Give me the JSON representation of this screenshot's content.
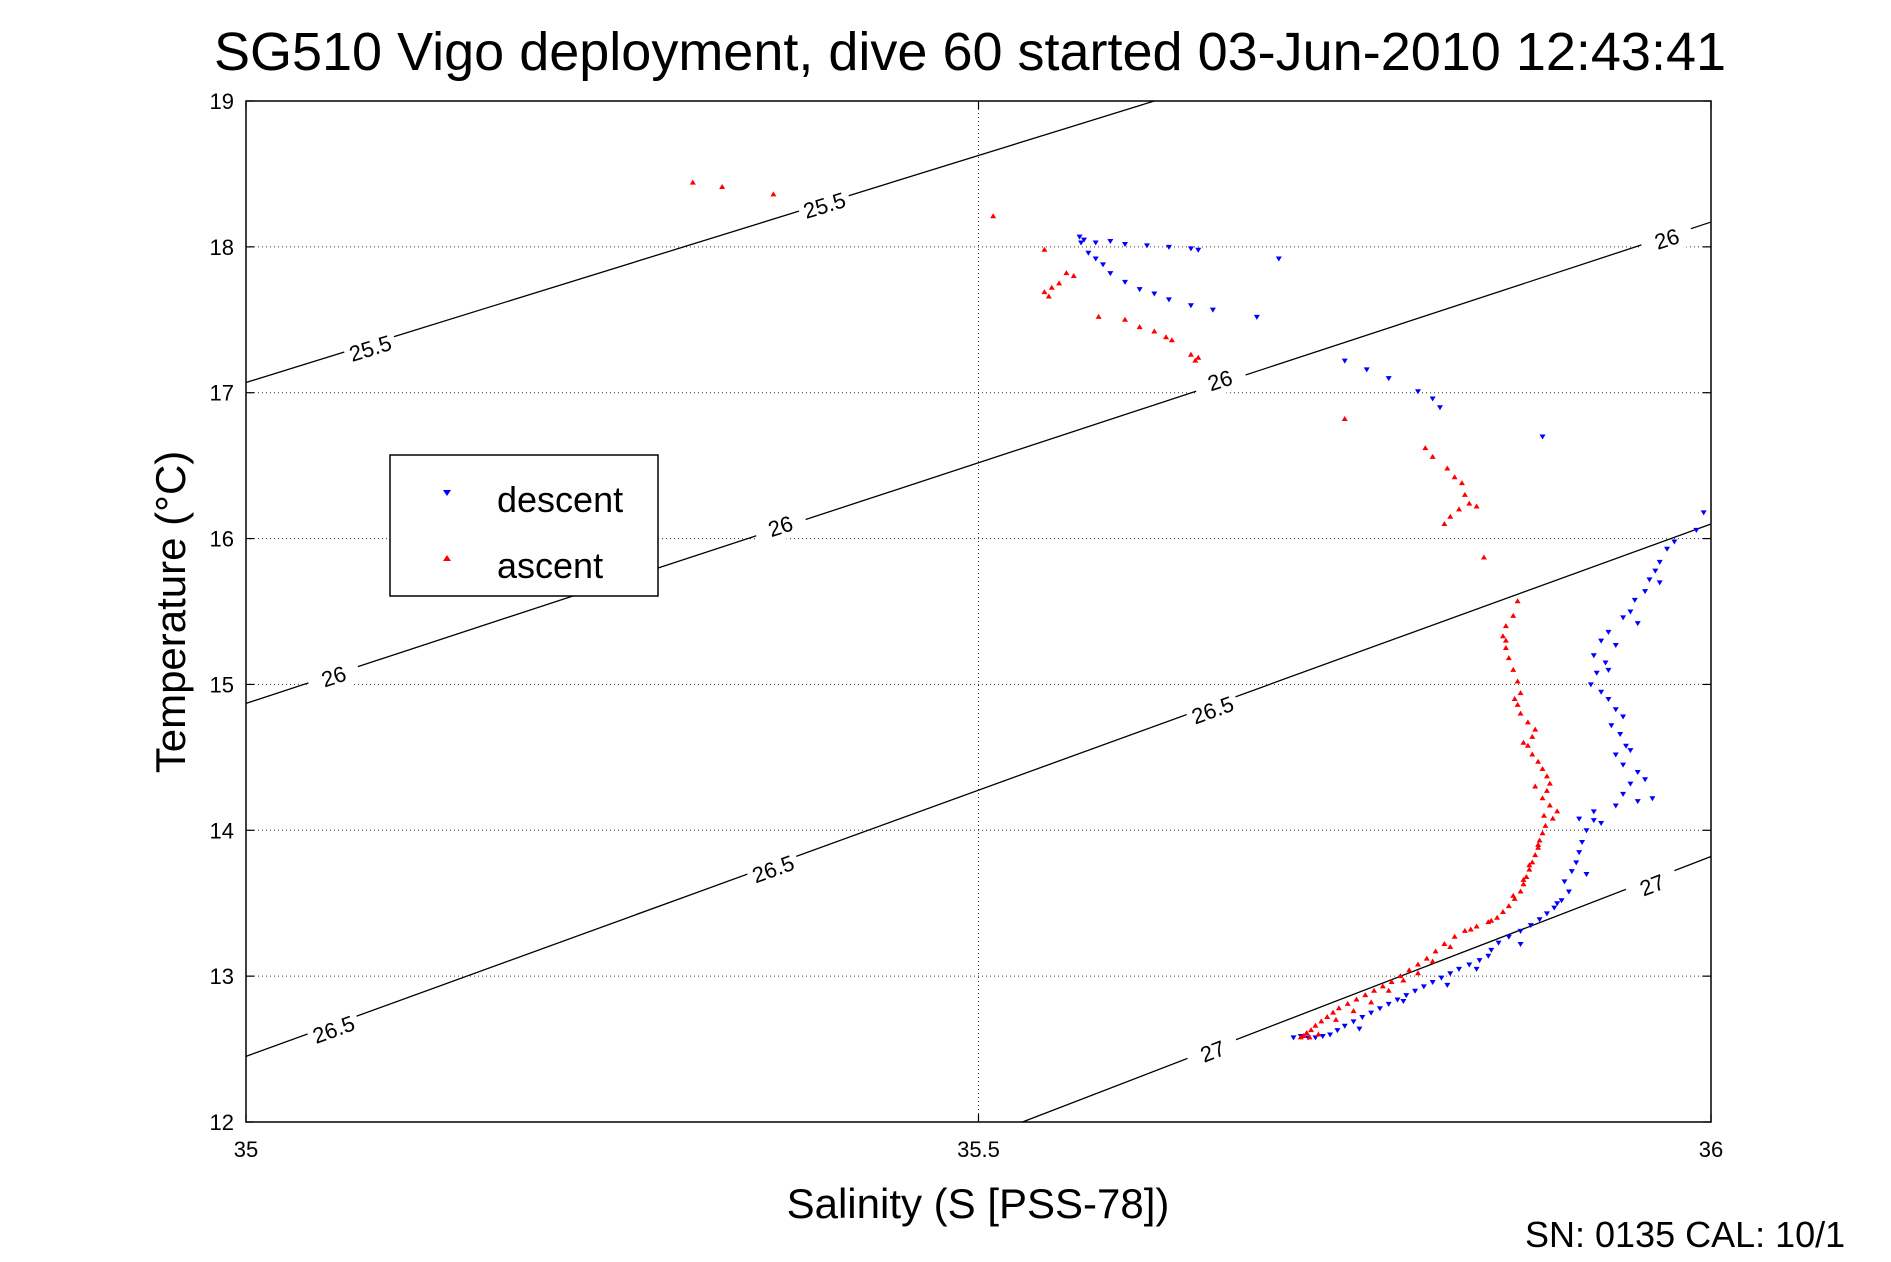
{
  "chart_data": {
    "type": "scatter",
    "title": "SG510 Vigo deployment, dive 60 started 03-Jun-2010 12:43:41",
    "xlabel": "Salinity (S [PSS-78])",
    "ylabel": "Temperature (°C)",
    "xlim": [
      35,
      36
    ],
    "ylim": [
      12,
      19
    ],
    "xticks": [
      "35",
      "35.5",
      "36"
    ],
    "yticks": [
      "12",
      "13",
      "14",
      "15",
      "16",
      "17",
      "18",
      "19"
    ],
    "grid": true,
    "legend_position": "left",
    "footer": "SN: 0135  CAL: 10/1",
    "contours": [
      {
        "label": "25.5",
        "points": [
          [
            35,
            17.07
          ],
          [
            35.62,
            19
          ]
        ],
        "label_positions": [
          [
            35.085,
            17.3
          ],
          [
            35.395,
            18.28
          ]
        ]
      },
      {
        "label": "26",
        "points": [
          [
            35,
            14.87
          ],
          [
            36,
            18.17
          ]
        ],
        "label_positions": [
          [
            35.06,
            15.05
          ],
          [
            35.365,
            16.08
          ],
          [
            35.665,
            17.08
          ],
          [
            35.97,
            18.05
          ]
        ]
      },
      {
        "label": "26.5",
        "points": [
          [
            35,
            12.45
          ],
          [
            36,
            16.1
          ]
        ],
        "label_positions": [
          [
            35.06,
            12.63
          ],
          [
            35.36,
            13.73
          ],
          [
            35.66,
            14.82
          ]
        ]
      },
      {
        "label": "27",
        "points": [
          [
            35.53,
            12
          ],
          [
            36,
            13.82
          ]
        ],
        "label_positions": [
          [
            35.66,
            12.48
          ],
          [
            35.96,
            13.62
          ]
        ]
      }
    ],
    "series": [
      {
        "name": "descent",
        "color": "#0000ff",
        "marker": "down-triangle",
        "points": [
          [
            35.569,
            18.07
          ],
          [
            35.572,
            18.05
          ],
          [
            35.57,
            18.03
          ],
          [
            35.58,
            18.03
          ],
          [
            35.59,
            18.04
          ],
          [
            35.6,
            18.02
          ],
          [
            35.615,
            18.01
          ],
          [
            35.63,
            18.0
          ],
          [
            35.645,
            17.99
          ],
          [
            35.65,
            17.98
          ],
          [
            35.705,
            17.92
          ],
          [
            35.575,
            17.96
          ],
          [
            35.58,
            17.92
          ],
          [
            35.585,
            17.88
          ],
          [
            35.59,
            17.82
          ],
          [
            35.6,
            17.76
          ],
          [
            35.61,
            17.71
          ],
          [
            35.62,
            17.68
          ],
          [
            35.63,
            17.64
          ],
          [
            35.645,
            17.6
          ],
          [
            35.66,
            17.57
          ],
          [
            35.69,
            17.52
          ],
          [
            35.75,
            17.22
          ],
          [
            35.765,
            17.16
          ],
          [
            35.78,
            17.1
          ],
          [
            35.8,
            17.01
          ],
          [
            35.81,
            16.96
          ],
          [
            35.815,
            16.9
          ],
          [
            35.885,
            16.7
          ],
          [
            35.995,
            16.18
          ],
          [
            35.99,
            16.06
          ],
          [
            35.975,
            15.98
          ],
          [
            35.97,
            15.93
          ],
          [
            35.965,
            15.84
          ],
          [
            35.962,
            15.78
          ],
          [
            35.958,
            15.72
          ],
          [
            35.955,
            15.64
          ],
          [
            35.948,
            15.58
          ],
          [
            35.945,
            15.5
          ],
          [
            35.94,
            15.46
          ],
          [
            35.95,
            15.42
          ],
          [
            35.93,
            15.36
          ],
          [
            35.925,
            15.3
          ],
          [
            35.935,
            15.27
          ],
          [
            35.92,
            15.2
          ],
          [
            35.928,
            15.15
          ],
          [
            35.922,
            15.08
          ],
          [
            35.918,
            15.0
          ],
          [
            35.925,
            14.95
          ],
          [
            35.93,
            14.9
          ],
          [
            35.935,
            14.83
          ],
          [
            35.94,
            14.78
          ],
          [
            35.932,
            14.72
          ],
          [
            35.938,
            14.66
          ],
          [
            35.942,
            14.58
          ],
          [
            35.935,
            14.52
          ],
          [
            35.94,
            14.45
          ],
          [
            35.95,
            14.4
          ],
          [
            35.945,
            14.32
          ],
          [
            35.94,
            14.25
          ],
          [
            35.95,
            14.2
          ],
          [
            35.96,
            14.22
          ],
          [
            35.935,
            14.17
          ],
          [
            35.92,
            14.13
          ],
          [
            35.91,
            14.08
          ],
          [
            35.92,
            14.07
          ],
          [
            35.915,
            14.0
          ],
          [
            35.912,
            13.92
          ],
          [
            35.91,
            13.85
          ],
          [
            35.908,
            13.78
          ],
          [
            35.905,
            13.72
          ],
          [
            35.9,
            13.65
          ],
          [
            35.903,
            13.58
          ],
          [
            35.898,
            13.52
          ],
          [
            35.893,
            13.47
          ],
          [
            35.888,
            13.43
          ],
          [
            35.883,
            13.39
          ],
          [
            35.877,
            13.35
          ],
          [
            35.87,
            13.31
          ],
          [
            35.862,
            13.27
          ],
          [
            35.855,
            13.23
          ],
          [
            35.85,
            13.18
          ],
          [
            35.848,
            13.14
          ],
          [
            35.842,
            13.11
          ],
          [
            35.835,
            13.08
          ],
          [
            35.828,
            13.05
          ],
          [
            35.822,
            13.02
          ],
          [
            35.816,
            12.99
          ],
          [
            35.81,
            12.96
          ],
          [
            35.804,
            12.93
          ],
          [
            35.798,
            12.9
          ],
          [
            35.792,
            12.87
          ],
          [
            35.786,
            12.84
          ],
          [
            35.78,
            12.81
          ],
          [
            35.774,
            12.78
          ],
          [
            35.768,
            12.75
          ],
          [
            35.762,
            12.72
          ],
          [
            35.756,
            12.69
          ],
          [
            35.75,
            12.66
          ],
          [
            35.745,
            12.63
          ],
          [
            35.74,
            12.6
          ],
          [
            35.735,
            12.59
          ],
          [
            35.73,
            12.58
          ],
          [
            35.725,
            12.58
          ],
          [
            35.72,
            12.59
          ],
          [
            35.715,
            12.58
          ],
          [
            35.76,
            12.64
          ],
          [
            35.79,
            12.83
          ],
          [
            35.82,
            12.94
          ],
          [
            35.84,
            13.05
          ],
          [
            35.87,
            13.22
          ],
          [
            35.895,
            13.5
          ],
          [
            35.915,
            13.7
          ],
          [
            35.925,
            14.05
          ],
          [
            35.955,
            14.35
          ],
          [
            35.945,
            14.55
          ],
          [
            35.93,
            15.1
          ],
          [
            35.965,
            15.7
          ]
        ]
      },
      {
        "name": "ascent",
        "color": "#ff0000",
        "marker": "up-triangle",
        "points": [
          [
            35.305,
            18.44
          ],
          [
            35.325,
            18.41
          ],
          [
            35.36,
            18.36
          ],
          [
            35.51,
            18.21
          ],
          [
            35.545,
            17.98
          ],
          [
            35.56,
            17.82
          ],
          [
            35.565,
            17.8
          ],
          [
            35.555,
            17.75
          ],
          [
            35.55,
            17.72
          ],
          [
            35.545,
            17.69
          ],
          [
            35.548,
            17.66
          ],
          [
            35.582,
            17.52
          ],
          [
            35.6,
            17.5
          ],
          [
            35.61,
            17.45
          ],
          [
            35.62,
            17.42
          ],
          [
            35.628,
            17.38
          ],
          [
            35.632,
            17.36
          ],
          [
            35.645,
            17.26
          ],
          [
            35.648,
            17.22
          ],
          [
            35.65,
            17.24
          ],
          [
            35.75,
            16.82
          ],
          [
            35.805,
            16.62
          ],
          [
            35.81,
            16.56
          ],
          [
            35.82,
            16.48
          ],
          [
            35.825,
            16.42
          ],
          [
            35.83,
            16.38
          ],
          [
            35.832,
            16.3
          ],
          [
            35.835,
            16.24
          ],
          [
            35.828,
            16.2
          ],
          [
            35.822,
            16.15
          ],
          [
            35.818,
            16.1
          ],
          [
            35.84,
            16.22
          ],
          [
            35.845,
            15.87
          ],
          [
            35.868,
            15.57
          ],
          [
            35.865,
            15.47
          ],
          [
            35.86,
            15.4
          ],
          [
            35.858,
            15.33
          ],
          [
            35.86,
            15.25
          ],
          [
            35.862,
            15.18
          ],
          [
            35.865,
            15.1
          ],
          [
            35.868,
            15.02
          ],
          [
            35.87,
            14.94
          ],
          [
            35.868,
            14.86
          ],
          [
            35.87,
            14.8
          ],
          [
            35.875,
            14.74
          ],
          [
            35.88,
            14.69
          ],
          [
            35.878,
            14.64
          ],
          [
            35.875,
            14.58
          ],
          [
            35.878,
            14.52
          ],
          [
            35.882,
            14.47
          ],
          [
            35.885,
            14.42
          ],
          [
            35.888,
            14.37
          ],
          [
            35.89,
            14.32
          ],
          [
            35.888,
            14.27
          ],
          [
            35.885,
            14.22
          ],
          [
            35.89,
            14.17
          ],
          [
            35.895,
            14.13
          ],
          [
            35.892,
            14.08
          ],
          [
            35.887,
            14.03
          ],
          [
            35.885,
            13.98
          ],
          [
            35.883,
            13.93
          ],
          [
            35.882,
            13.88
          ],
          [
            35.88,
            13.83
          ],
          [
            35.878,
            13.78
          ],
          [
            35.876,
            13.73
          ],
          [
            35.874,
            13.68
          ],
          [
            35.872,
            13.63
          ],
          [
            35.87,
            13.58
          ],
          [
            35.866,
            13.53
          ],
          [
            35.862,
            13.48
          ],
          [
            35.858,
            13.44
          ],
          [
            35.854,
            13.4
          ],
          [
            35.848,
            13.37
          ],
          [
            35.84,
            13.34
          ],
          [
            35.832,
            13.31
          ],
          [
            35.825,
            13.27
          ],
          [
            35.818,
            13.22
          ],
          [
            35.812,
            13.17
          ],
          [
            35.806,
            13.12
          ],
          [
            35.8,
            13.08
          ],
          [
            35.794,
            13.04
          ],
          [
            35.788,
            13.0
          ],
          [
            35.782,
            12.96
          ],
          [
            35.776,
            12.93
          ],
          [
            35.77,
            12.9
          ],
          [
            35.764,
            12.87
          ],
          [
            35.758,
            12.84
          ],
          [
            35.752,
            12.81
          ],
          [
            35.746,
            12.78
          ],
          [
            35.742,
            12.75
          ],
          [
            35.738,
            12.72
          ],
          [
            35.734,
            12.69
          ],
          [
            35.73,
            12.66
          ],
          [
            35.727,
            12.63
          ],
          [
            35.724,
            12.61
          ],
          [
            35.722,
            12.59
          ],
          [
            35.72,
            12.58
          ],
          [
            35.726,
            12.58
          ],
          [
            35.732,
            12.6
          ],
          [
            35.744,
            12.7
          ],
          [
            35.756,
            12.76
          ],
          [
            35.768,
            12.82
          ],
          [
            35.78,
            12.9
          ],
          [
            35.79,
            12.97
          ],
          [
            35.8,
            13.02
          ],
          [
            35.81,
            13.1
          ],
          [
            35.822,
            13.2
          ],
          [
            35.836,
            13.32
          ],
          [
            35.85,
            13.38
          ],
          [
            35.865,
            13.55
          ],
          [
            35.872,
            13.66
          ],
          [
            35.876,
            13.76
          ],
          [
            35.882,
            13.9
          ],
          [
            35.886,
            14.1
          ],
          [
            35.88,
            14.3
          ],
          [
            35.872,
            14.6
          ],
          [
            35.866,
            14.9
          ],
          [
            35.86,
            15.3
          ]
        ]
      }
    ]
  }
}
